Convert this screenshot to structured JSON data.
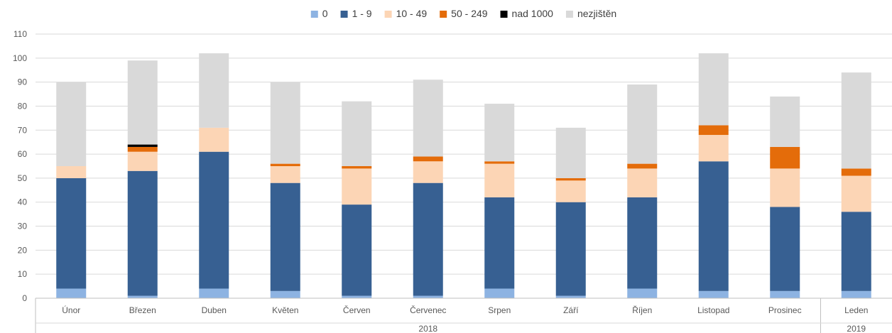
{
  "chart_data": {
    "type": "bar",
    "stacked": true,
    "categories": [
      "Únor",
      "Březen",
      "Duben",
      "Květen",
      "Červen",
      "Červenec",
      "Srpen",
      "Září",
      "Říjen",
      "Listopad",
      "Prosinec",
      "Leden"
    ],
    "year_groups": [
      {
        "label": "2018",
        "count": 11
      },
      {
        "label": "2019",
        "count": 1
      }
    ],
    "ylim": [
      0,
      110
    ],
    "yticks": [
      0,
      10,
      20,
      30,
      40,
      50,
      60,
      70,
      80,
      90,
      100,
      110
    ],
    "grid": true,
    "legend_position": "top",
    "series": [
      {
        "name": "0",
        "color": "#8db3e2",
        "values": [
          4,
          1,
          4,
          3,
          1,
          1,
          4,
          1,
          4,
          3,
          3,
          3
        ]
      },
      {
        "name": "1 - 9",
        "color": "#376092",
        "values": [
          46,
          52,
          57,
          45,
          38,
          47,
          38,
          39,
          38,
          54,
          35,
          33
        ]
      },
      {
        "name": "10 - 49",
        "color": "#fcd5b5",
        "values": [
          5,
          8,
          10,
          7,
          15,
          9,
          14,
          9,
          12,
          11,
          16,
          15
        ]
      },
      {
        "name": "50 - 249",
        "color": "#e46c0a",
        "values": [
          0,
          2,
          0,
          1,
          1,
          2,
          1,
          1,
          2,
          4,
          9,
          3
        ]
      },
      {
        "name": "nad 1000",
        "color": "#000000",
        "values": [
          0,
          1,
          0,
          0,
          0,
          0,
          0,
          0,
          0,
          0,
          0,
          0
        ]
      },
      {
        "name": "nezjištěn",
        "color": "#d9d9d9",
        "values": [
          35,
          35,
          31,
          34,
          27,
          32,
          24,
          21,
          33,
          30,
          21,
          40
        ]
      }
    ]
  }
}
